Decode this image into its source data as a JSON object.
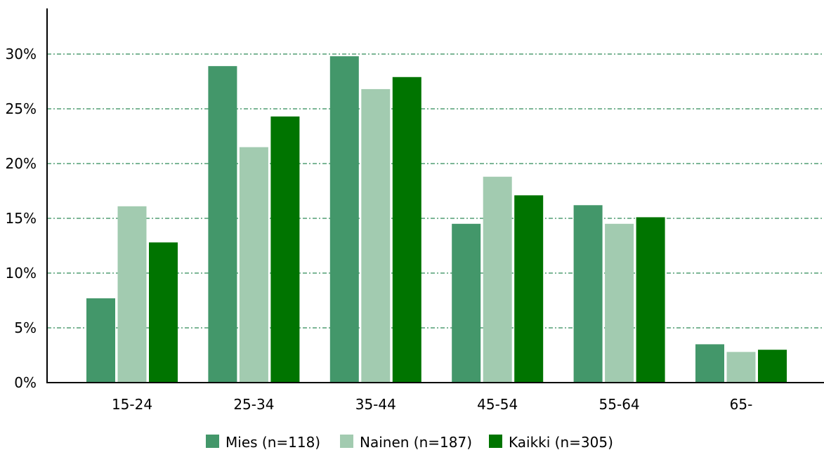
{
  "chart_data": {
    "type": "bar",
    "categories": [
      "15-24",
      "25-34",
      "35-44",
      "45-54",
      "55-64",
      "65-"
    ],
    "series": [
      {
        "name": "Mies (n=118)",
        "color": "#43976a",
        "values": [
          7.7,
          28.9,
          29.8,
          14.5,
          16.2,
          3.5
        ]
      },
      {
        "name": "Nainen (n=187)",
        "color": "#a2cbb0",
        "values": [
          16.1,
          21.5,
          26.8,
          18.8,
          14.5,
          2.8
        ]
      },
      {
        "name": "Kaikki (n=305)",
        "color": "#007400",
        "values": [
          12.8,
          24.3,
          27.9,
          17.1,
          15.1,
          3.0
        ]
      }
    ],
    "yticks": [
      "0%",
      "5%",
      "10%",
      "15%",
      "20%",
      "25%",
      "30%"
    ],
    "ylim": [
      0,
      30
    ],
    "grid": true,
    "grid_color": "#2e8b57",
    "legend_position": "bottom"
  }
}
